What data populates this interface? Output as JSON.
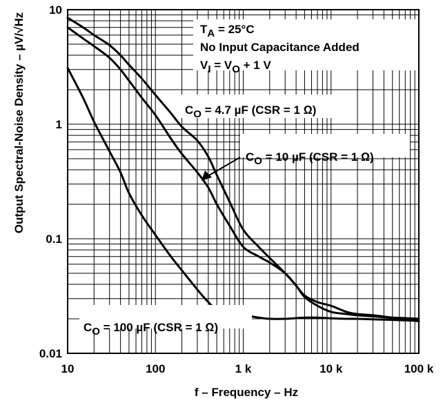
{
  "chart_data": {
    "type": "line",
    "title": "",
    "xlabel": "f – Frequency – Hz",
    "ylabel": "Output Spectral-Noise Density – µV/√Hz",
    "x_scale": "log",
    "y_scale": "log",
    "xlim": [
      10,
      100000
    ],
    "ylim": [
      0.01,
      10
    ],
    "grid": true,
    "x_ticks": [
      {
        "value": 10,
        "label": "10"
      },
      {
        "value": 100,
        "label": "100"
      },
      {
        "value": 1000,
        "label": "1 k"
      },
      {
        "value": 10000,
        "label": "10 k"
      },
      {
        "value": 100000,
        "label": "100 k"
      }
    ],
    "y_ticks": [
      {
        "value": 0.01,
        "label": "0.01"
      },
      {
        "value": 0.1,
        "label": "0.1"
      },
      {
        "value": 1,
        "label": "1"
      },
      {
        "value": 10,
        "label": "10"
      }
    ],
    "annotations": [
      {
        "parts": [
          "T",
          "A",
          " = 25°C"
        ]
      },
      {
        "parts": [
          "No Input Capacitance Added"
        ]
      },
      {
        "parts": [
          "V",
          "I",
          " = V",
          "O",
          " + 1 V"
        ]
      }
    ],
    "series": [
      {
        "name_parts": [
          "C",
          "O",
          " = 4.7 µF (CSR = 1 Ω)"
        ],
        "x": [
          10,
          15,
          20,
          30,
          40,
          50,
          70,
          100,
          150,
          200,
          300,
          400,
          500,
          700,
          1000,
          1500,
          2000,
          3000,
          4000,
          5000,
          7000,
          10000,
          15000,
          20000,
          30000,
          50000,
          70000,
          100000
        ],
        "y": [
          8.5,
          7.0,
          6.0,
          4.9,
          4.0,
          3.3,
          2.5,
          1.8,
          1.25,
          0.95,
          0.72,
          0.52,
          0.36,
          0.21,
          0.12,
          0.085,
          0.068,
          0.05,
          0.039,
          0.032,
          0.028,
          0.026,
          0.023,
          0.022,
          0.0215,
          0.0205,
          0.02,
          0.019
        ]
      },
      {
        "name_parts": [
          "C",
          "O",
          " = 10 µF (CSR = 1 Ω)"
        ],
        "x": [
          10,
          15,
          20,
          30,
          40,
          50,
          70,
          100,
          150,
          200,
          300,
          400,
          500,
          700,
          1000,
          1500,
          2000,
          3000,
          4000,
          5000,
          7000,
          10000,
          15000,
          20000,
          30000,
          50000,
          70000,
          100000
        ],
        "y": [
          7.0,
          5.6,
          4.8,
          3.8,
          3.0,
          2.4,
          1.7,
          1.2,
          0.75,
          0.55,
          0.38,
          0.28,
          0.2,
          0.13,
          0.085,
          0.07,
          0.062,
          0.05,
          0.039,
          0.031,
          0.026,
          0.023,
          0.022,
          0.0215,
          0.021,
          0.0205,
          0.0203,
          0.02
        ]
      },
      {
        "name_parts": [
          "C",
          "O",
          " = 100 µF (CSR = 1 Ω)"
        ],
        "x": [
          10,
          15,
          20,
          30,
          40,
          50,
          70,
          100,
          150,
          200,
          300,
          400,
          500,
          700,
          1000,
          1500,
          2000,
          3000,
          5000,
          7000,
          10000,
          15000,
          20000,
          30000,
          50000,
          70000,
          100000
        ],
        "y": [
          3.1,
          1.7,
          1.05,
          0.58,
          0.38,
          0.25,
          0.16,
          0.108,
          0.07,
          0.053,
          0.036,
          0.028,
          0.024,
          0.022,
          0.0215,
          0.0205,
          0.02,
          0.02,
          0.0205,
          0.0205,
          0.0202,
          0.02,
          0.02,
          0.0198,
          0.0196,
          0.0194,
          0.0192
        ]
      }
    ]
  }
}
